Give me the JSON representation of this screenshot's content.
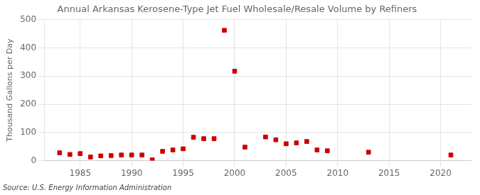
{
  "chart_data": {
    "type": "scatter",
    "title": "Annual Arkansas Kerosene-Type Jet Fuel Wholesale/Resale Volume by Refiners",
    "ylabel": "Thousand Gallons per Day",
    "source": "Source: U.S. Energy Information Administration",
    "x": [
      1983,
      1984,
      1985,
      1986,
      1987,
      1988,
      1989,
      1990,
      1991,
      1992,
      1993,
      1994,
      1995,
      1996,
      1997,
      1998,
      1999,
      2000,
      2001,
      2003,
      2004,
      2005,
      2006,
      2007,
      2008,
      2009,
      2013,
      2021
    ],
    "values": [
      28,
      22,
      25,
      13,
      17,
      18,
      20,
      20,
      20,
      3,
      33,
      38,
      42,
      83,
      78,
      78,
      462,
      317,
      48,
      84,
      74,
      60,
      63,
      68,
      38,
      35,
      30,
      20
    ],
    "color": "#cc0000",
    "marker": "square",
    "xlim": [
      1981.5,
      2023
    ],
    "ylim": [
      0,
      500
    ],
    "xticks": [
      1985,
      1990,
      1995,
      2000,
      2005,
      2010,
      2015,
      2020
    ],
    "yticks": [
      0,
      100,
      200,
      300,
      400,
      500
    ],
    "grid": true
  }
}
